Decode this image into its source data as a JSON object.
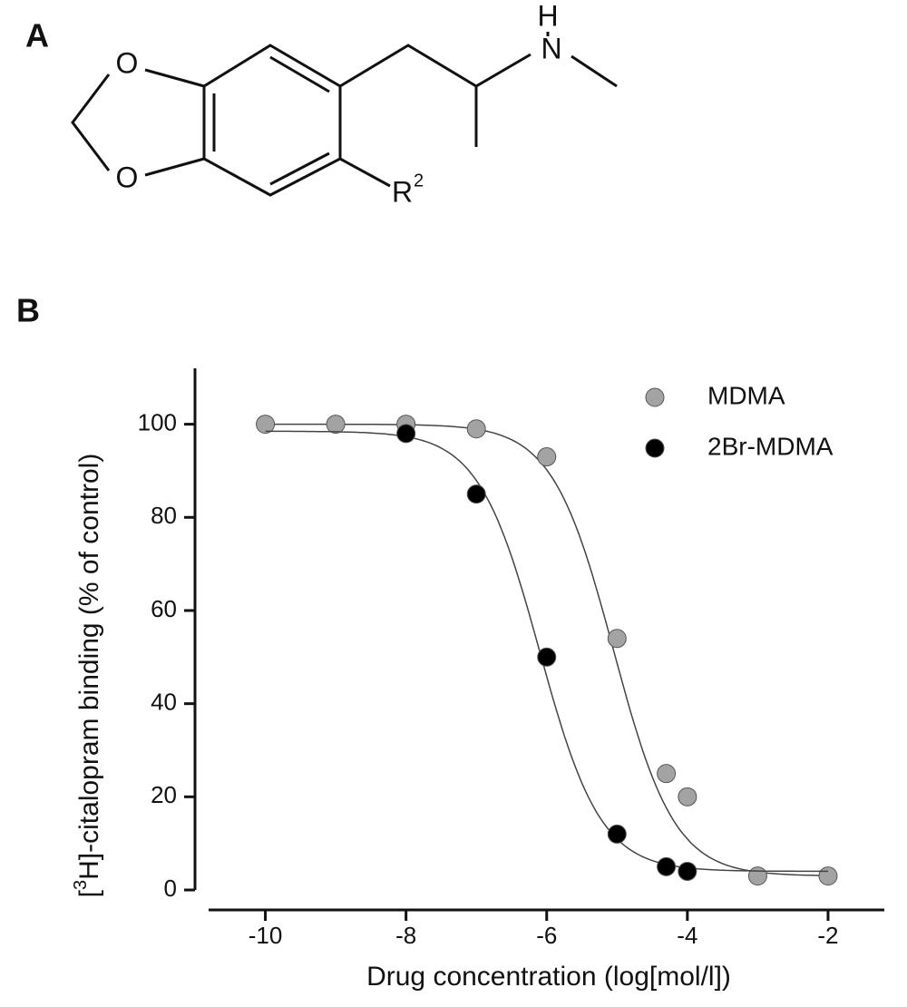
{
  "panels": [
    "A",
    "B"
  ],
  "structure": {
    "atoms": [
      "O",
      "O",
      "H",
      "N"
    ],
    "substituent": "R",
    "substituent_superscript": "2"
  },
  "chart_data": {
    "type": "scatter",
    "xlabel": "Drug concentration (log[mol/l])",
    "ylabel_prefix": "[",
    "ylabel_superscript": "3",
    "ylabel": "H]-citalopram binding (% of control)",
    "xlim": [
      -11,
      -1.2
    ],
    "ylim": [
      0,
      112
    ],
    "xticks": [
      -10,
      -8,
      -6,
      -4,
      -2
    ],
    "yticks": [
      0,
      20,
      40,
      60,
      80,
      100
    ],
    "legend": "top-right",
    "series": [
      {
        "name": "MDMA",
        "color": "#a3a3a3",
        "x": [
          -10,
          -9,
          -8,
          -7,
          -6,
          -5,
          -4.3,
          -4,
          -3,
          -2
        ],
        "values": [
          100,
          100,
          100,
          99,
          93,
          54,
          25,
          20,
          3,
          3
        ],
        "fit": {
          "top": 100,
          "bottom": 3,
          "log_ic50": -5.05,
          "hill": 1
        }
      },
      {
        "name": "2Br-MDMA",
        "color": "#000000",
        "x": [
          -8,
          -7,
          -6,
          -5,
          -4.3,
          -4
        ],
        "values": [
          98,
          85,
          50,
          12,
          5,
          4
        ],
        "fit": {
          "top": 98.5,
          "bottom": 4,
          "log_ic50": -6.1,
          "hill": 1
        }
      }
    ]
  }
}
